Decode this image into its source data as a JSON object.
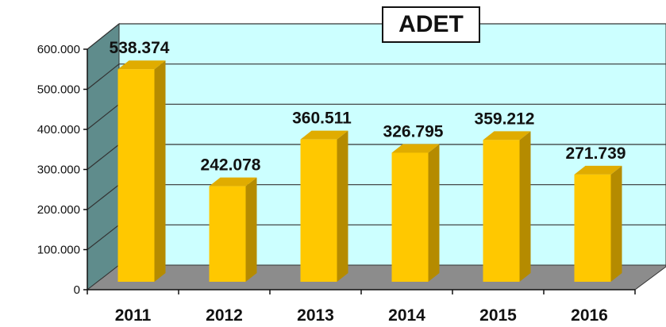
{
  "chart_data": {
    "type": "bar",
    "title": "ADET",
    "xlabel": "",
    "ylabel": "",
    "categories": [
      "2011",
      "2012",
      "2013",
      "2014",
      "2015",
      "2016"
    ],
    "values": [
      538374,
      242078,
      360511,
      326795,
      359212,
      271739
    ],
    "value_labels": [
      "538.374",
      "242.078",
      "360.511",
      "326.795",
      "359.212",
      "271.739"
    ],
    "ylim": [
      0,
      600000
    ],
    "yticks": [
      0,
      100000,
      200000,
      300000,
      400000,
      500000,
      600000
    ],
    "ytick_labels": [
      "0",
      "100.000",
      "200.000",
      "300.000",
      "400.000",
      "500.000",
      "600.000"
    ],
    "grid": true,
    "legend": "none",
    "colors": {
      "bar_front": "#FFC800",
      "bar_side": "#B58B00",
      "bar_top": "#E0AC00",
      "plot_back": "#CCFFFF",
      "plot_side_wall": "#5F8C8C",
      "plot_floor": "#8C8C8C",
      "gridline": "#333333"
    }
  }
}
